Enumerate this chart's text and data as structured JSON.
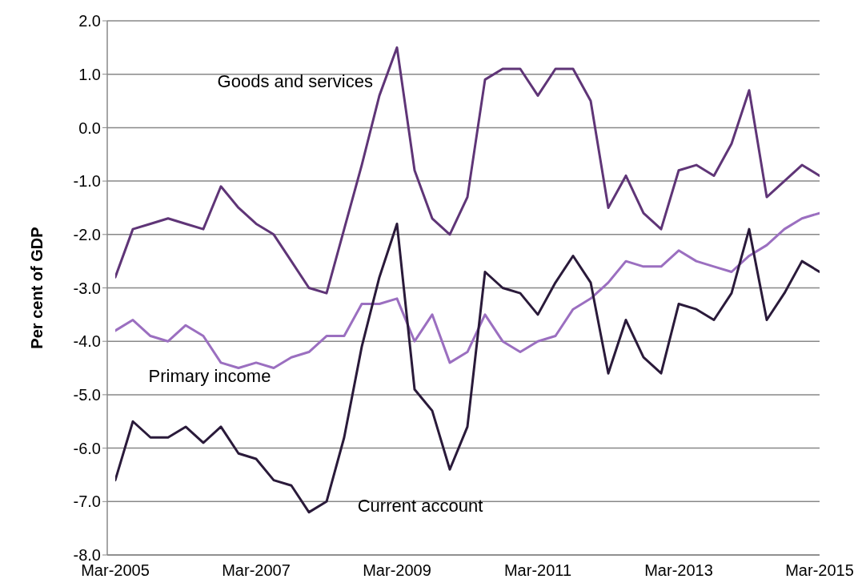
{
  "chart_data": {
    "type": "line",
    "ylabel": "Per cent of GDP",
    "categories": [
      "Mar-2005",
      null,
      null,
      null,
      null,
      null,
      null,
      null,
      "Mar-2007",
      null,
      null,
      null,
      null,
      null,
      null,
      null,
      "Mar-2009",
      null,
      null,
      null,
      null,
      null,
      null,
      null,
      "Mar-2011",
      null,
      null,
      null,
      null,
      null,
      null,
      null,
      "Mar-2013",
      null,
      null,
      null,
      null,
      null,
      null,
      null,
      "Mar-2015"
    ],
    "series": [
      {
        "name": "Goods and services",
        "color": "#5f3577",
        "values": [
          -2.8,
          -1.9,
          -1.8,
          -1.7,
          -1.8,
          -1.9,
          -1.1,
          -1.5,
          -1.8,
          -2.0,
          -2.5,
          -3.0,
          -3.1,
          -1.9,
          -0.7,
          0.6,
          1.5,
          -0.8,
          -1.7,
          -2.0,
          -1.3,
          0.9,
          1.1,
          1.1,
          0.6,
          1.1,
          1.1,
          0.5,
          -1.5,
          -0.9,
          -1.6,
          -1.9,
          -0.8,
          -0.7,
          -0.9,
          -0.3,
          0.7,
          -1.3,
          -1.0,
          -0.7,
          -0.9
        ]
      },
      {
        "name": "Primary income",
        "color": "#9b6fc0",
        "values": [
          -3.8,
          -3.6,
          -3.9,
          -4.0,
          -3.7,
          -3.9,
          -4.4,
          -4.5,
          -4.4,
          -4.5,
          -4.3,
          -4.2,
          -3.9,
          -3.9,
          -3.3,
          -3.3,
          -3.2,
          -4.0,
          -3.5,
          -4.4,
          -4.2,
          -3.5,
          -4.0,
          -4.2,
          -4.0,
          -3.9,
          -3.4,
          -3.2,
          -2.9,
          -2.5,
          -2.6,
          -2.6,
          -2.3,
          -2.5,
          -2.6,
          -2.7,
          -2.4,
          -2.2,
          -1.9,
          -1.7,
          -1.6
        ]
      },
      {
        "name": "Current account",
        "color": "#2a1a3a",
        "values": [
          -6.6,
          -5.5,
          -5.8,
          -5.8,
          -5.6,
          -5.9,
          -5.6,
          -6.1,
          -6.2,
          -6.6,
          -6.7,
          -7.2,
          -7.0,
          -5.8,
          -4.1,
          -2.8,
          -1.8,
          -4.9,
          -5.3,
          -6.4,
          -5.6,
          -2.7,
          -3.0,
          -3.1,
          -3.5,
          -2.9,
          -2.4,
          -2.9,
          -4.6,
          -3.6,
          -4.3,
          -4.6,
          -3.3,
          -3.4,
          -3.6,
          -3.1,
          -1.9,
          -3.6,
          -3.1,
          -2.5,
          -2.7
        ]
      }
    ],
    "ylim": [
      -8,
      2
    ],
    "yticks": [
      {
        "value": -8,
        "label": "-8.0"
      },
      {
        "value": -7,
        "label": "-7.0"
      },
      {
        "value": -6,
        "label": "-6.0"
      },
      {
        "value": -5,
        "label": "-5.0"
      },
      {
        "value": -4,
        "label": "-4.0"
      },
      {
        "value": -3,
        "label": "-3.0"
      },
      {
        "value": -2,
        "label": "-2.0"
      },
      {
        "value": -1,
        "label": "-1.0"
      },
      {
        "value": 0,
        "label": "0.0"
      },
      {
        "value": 1,
        "label": "1.0"
      },
      {
        "value": 2,
        "label": "2.0"
      }
    ],
    "grid": "y",
    "legend": false,
    "marker": "none",
    "line_style": "solid"
  }
}
